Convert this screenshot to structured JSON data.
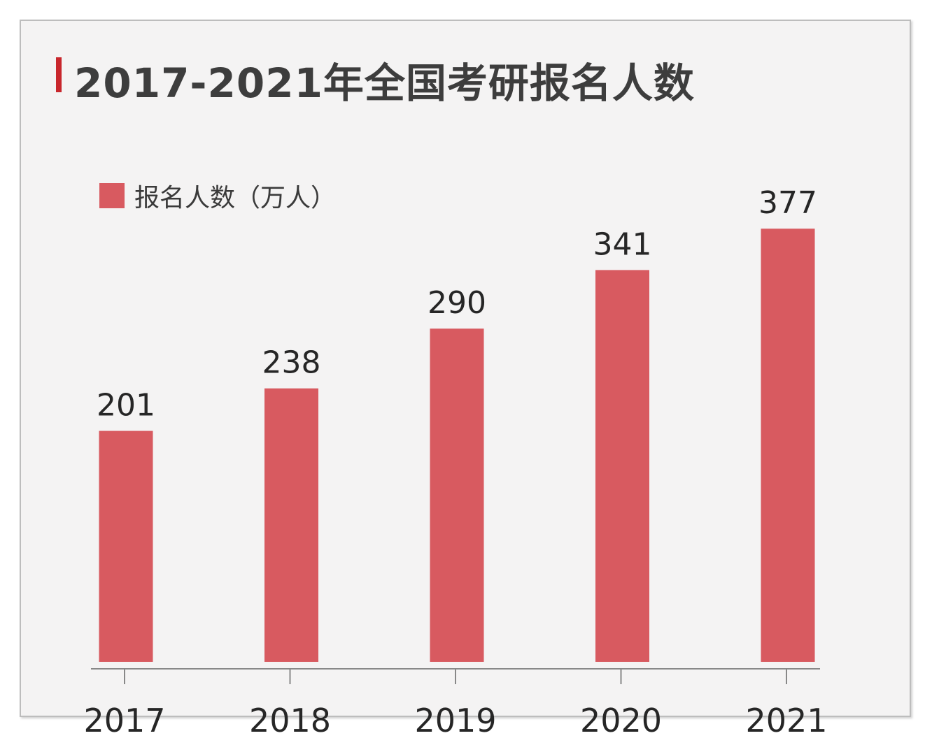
{
  "chart_data": {
    "type": "bar",
    "title": "2017-2021年全国考研报名人数",
    "categories": [
      "2017",
      "2018",
      "2019",
      "2020",
      "2021"
    ],
    "series": [
      {
        "name": "报名人数（万人）",
        "values": [
          201,
          238,
          290,
          341,
          377
        ]
      }
    ],
    "xlabel": "",
    "ylabel": "",
    "ylim": [
      0,
      400
    ],
    "grid": false,
    "legend_position": "top-left",
    "colors": {
      "bar": "#d85a60",
      "title_accent": "#c8262c",
      "axis": "#888888"
    }
  }
}
